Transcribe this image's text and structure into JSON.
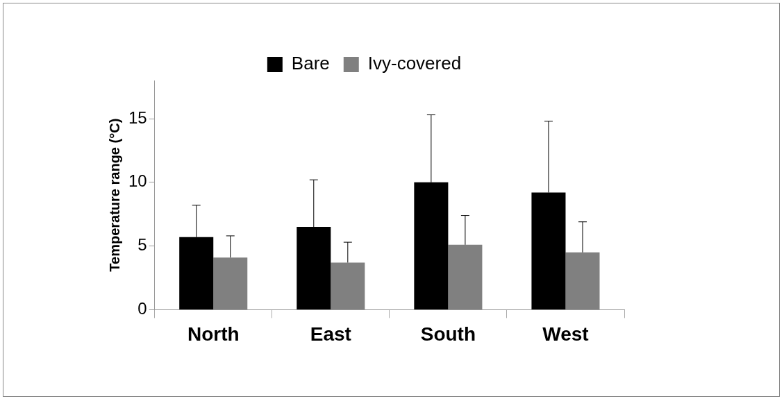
{
  "chart_data": {
    "type": "bar",
    "ylabel": "Temperature range (°C)",
    "categories": [
      "North",
      "East",
      "South",
      "West"
    ],
    "series": [
      {
        "name": "Bare",
        "color": "#000000",
        "values": [
          5.7,
          6.5,
          10.0,
          9.2
        ],
        "errors": [
          [
            5.7,
            8.2
          ],
          [
            6.5,
            10.2
          ],
          [
            10.0,
            15.3
          ],
          [
            9.2,
            14.8
          ]
        ]
      },
      {
        "name": "Ivy-covered",
        "color": "#808080",
        "values": [
          4.1,
          3.7,
          5.1,
          4.5
        ],
        "errors": [
          [
            4.1,
            5.8
          ],
          [
            3.7,
            5.3
          ],
          [
            5.1,
            7.4
          ],
          [
            4.5,
            6.9
          ]
        ]
      }
    ],
    "ylim": [
      0,
      18
    ],
    "yticks": [
      0,
      5,
      10,
      15
    ],
    "grid": false,
    "legend": "top"
  }
}
